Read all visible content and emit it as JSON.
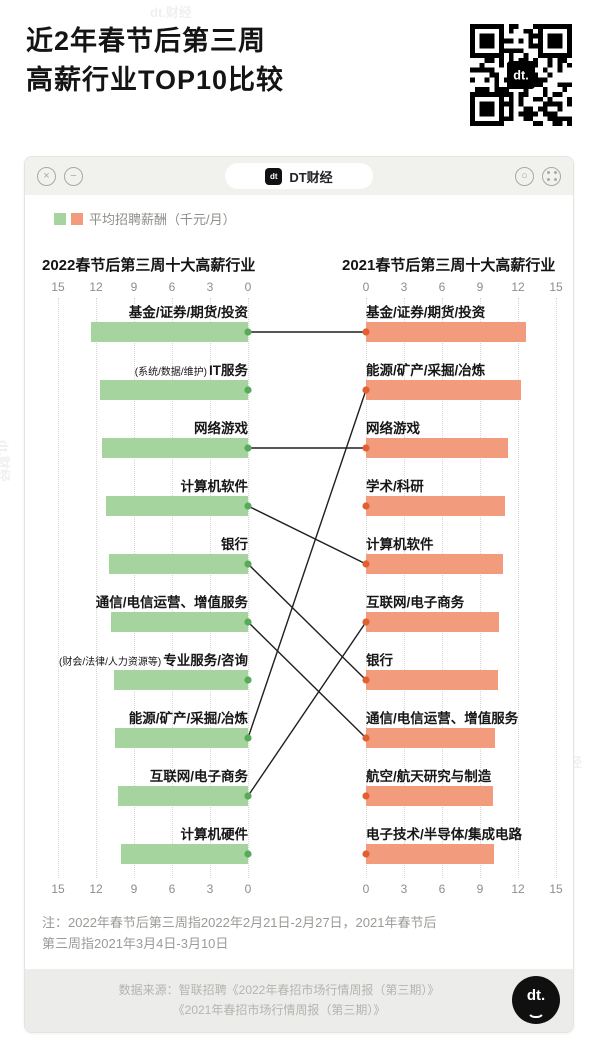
{
  "page": {
    "title_line1": "近2年春节后第三周",
    "title_line2": "高薪行业TOP10比较",
    "watermark": "dt.财经",
    "note_line1": "注：2022年春节后第三周指2022年2月21日-2月27日，2021年春节后",
    "note_line2": "第三周指2021年3月4日-3月10日",
    "source_line1": "数据来源：智联招聘《2022年春招市场行情周报（第三期）》",
    "source_line2": "《2021年春招市场行情周报（第三期）》"
  },
  "window": {
    "logo": "dt",
    "brand": "DT财经",
    "badge": "dt.",
    "icons": {
      "close": "×",
      "minimize": "−",
      "circle": "○"
    }
  },
  "legend": {
    "label": "平均招聘薪酬（千元/月）"
  },
  "chart_data": {
    "type": "bar",
    "orientation": "horizontal-mirrored-slopegraph",
    "unit": "千元/月",
    "xlim": [
      0,
      15
    ],
    "ticks": [
      0,
      3,
      6,
      9,
      12,
      15
    ],
    "ticks_left_display": [
      15,
      12,
      9,
      6,
      3,
      0
    ],
    "ticks_right_display": [
      0,
      3,
      6,
      9,
      12,
      15
    ],
    "grid": "dotted-vertical",
    "series": [
      {
        "name": "2022春节后第三周十大高薪行业",
        "side": "left",
        "color": "#a6d49e",
        "dot_color": "#55ab57",
        "items": [
          {
            "label": "基金/证券/期货/投资",
            "value": 12.4
          },
          {
            "label": "IT服务",
            "prefix": "(系统/数据/维护)",
            "value": 11.7
          },
          {
            "label": "网络游戏",
            "value": 11.5
          },
          {
            "label": "计算机软件",
            "value": 11.2
          },
          {
            "label": "银行",
            "value": 11.0
          },
          {
            "label": "通信/电信运营、增值服务",
            "value": 10.8
          },
          {
            "label": "专业服务/咨询",
            "prefix": "(财会/法律/人力资源等)",
            "value": 10.6
          },
          {
            "label": "能源/矿产/采掘/冶炼",
            "value": 10.5
          },
          {
            "label": "互联网/电子商务",
            "value": 10.3
          },
          {
            "label": "计算机硬件",
            "value": 10.0
          }
        ]
      },
      {
        "name": "2021春节后第三周十大高薪行业",
        "side": "right",
        "color": "#f29b7d",
        "dot_color": "#e0602f",
        "items": [
          {
            "label": "基金/证券/期货/投资",
            "value": 12.6
          },
          {
            "label": "能源/矿产/采掘/冶炼",
            "value": 12.2
          },
          {
            "label": "网络游戏",
            "value": 11.2
          },
          {
            "label": "学术/科研",
            "value": 11.0
          },
          {
            "label": "计算机软件",
            "value": 10.8
          },
          {
            "label": "互联网/电子商务",
            "value": 10.5
          },
          {
            "label": "银行",
            "value": 10.4
          },
          {
            "label": "通信/电信运营、增值服务",
            "value": 10.2
          },
          {
            "label": "航空/航天研究与制造",
            "value": 10.0
          },
          {
            "label": "电子技术/半导体/集成电路",
            "value": 10.1
          }
        ]
      }
    ],
    "links": [
      [
        0,
        0
      ],
      [
        2,
        2
      ],
      [
        3,
        4
      ],
      [
        4,
        6
      ],
      [
        5,
        7
      ],
      [
        7,
        1
      ],
      [
        8,
        5
      ]
    ],
    "link_color": "#1f1f1f"
  }
}
